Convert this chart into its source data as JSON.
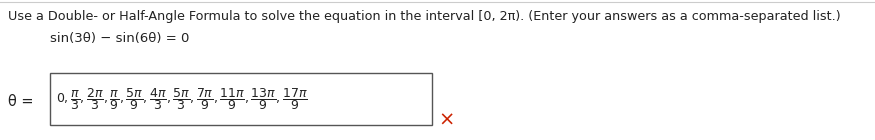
{
  "line1": "Use a Double- or Half-Angle Formula to solve the equation in the interval [0, 2π). (Enter your answers as a comma-separated list.)",
  "line2": "sin(3θ) − sin(6θ) = 0",
  "label": "θ =",
  "math_content": "$0, \\dfrac{\\pi}{3}, \\dfrac{2\\pi}{3}, \\dfrac{\\pi}{9}, \\dfrac{5\\pi}{9}, \\dfrac{4\\pi}{3}, \\dfrac{5\\pi}{3}, \\dfrac{7\\pi}{9}, \\dfrac{11\\pi}{9}, \\dfrac{13\\pi}{9}, \\dfrac{17\\pi}{9}$",
  "bg_color": "#ffffff",
  "text_color": "#222222",
  "box_edge_color": "#555555",
  "x_color": "#cc2200",
  "font_size_line1": 9.2,
  "font_size_line2": 9.5,
  "font_size_label": 10.5,
  "font_size_math": 9.0,
  "font_size_x": 14,
  "fig_width": 8.75,
  "fig_height": 1.4,
  "dpi": 100
}
